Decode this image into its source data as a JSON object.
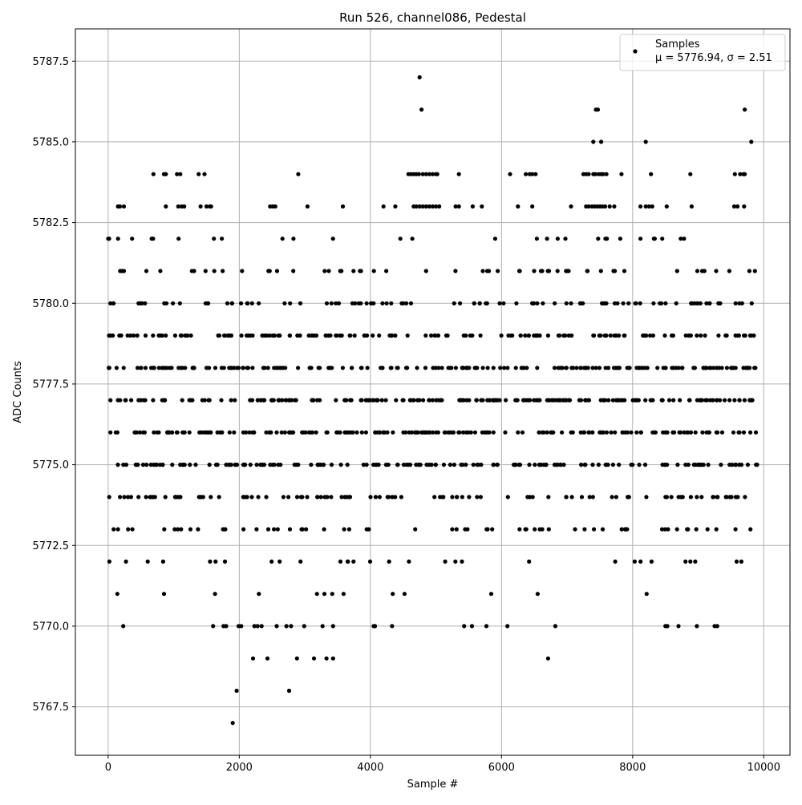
{
  "chart_data": {
    "type": "scatter",
    "title": "Run 526, channel086, Pedestal",
    "xlabel": "Sample #",
    "ylabel": "ADC Counts",
    "xlim": [
      -500,
      10400
    ],
    "ylim": [
      5766.0,
      5788.5
    ],
    "xticks": [
      0,
      2000,
      4000,
      6000,
      8000,
      10000
    ],
    "xtick_labels": [
      "0",
      "2000",
      "4000",
      "6000",
      "8000",
      "10000"
    ],
    "yticks": [
      5767.5,
      5770.0,
      5772.5,
      5775.0,
      5777.5,
      5780.0,
      5782.5,
      5785.0,
      5787.5
    ],
    "ytick_labels": [
      "5767.5",
      "5770.0",
      "5772.5",
      "5775.0",
      "5777.5",
      "5780.0",
      "5782.5",
      "5785.0",
      "5787.5"
    ],
    "grid": true,
    "legend_placement": "top-right",
    "marker_color": "#000000",
    "series": [
      {
        "name": "Samples",
        "legend_label_stats": "μ = 5776.94, σ = 2.51",
        "x_range": [
          0,
          9900
        ],
        "mean": 5776.94,
        "std": 2.51,
        "density_per_level": [
          {
            "y": 5787,
            "points": [
              4750
            ]
          },
          {
            "y": 5786,
            "points": [
              4780,
              7440,
              7470,
              9710
            ]
          },
          {
            "y": 5785,
            "points": [
              7400,
              7520,
              8200,
              9810
            ]
          },
          {
            "y": 5784,
            "points": [
              690,
              850,
              880,
              1050,
              1100,
              1380,
              1470,
              2900,
              4580,
              4620,
              4660,
              4700,
              4740,
              4800,
              4850,
              4900,
              4950,
              5000,
              5020,
              5350,
              6130,
              6370,
              6430,
              6470,
              6520,
              7250,
              7290,
              7330,
              7400,
              7430,
              7480,
              7520,
              7550,
              7600,
              7830,
              8280,
              8880,
              9560,
              9640,
              9690,
              9710
            ]
          },
          {
            "y": 5783,
            "points": [
              150,
              180,
              240,
              880,
              1070,
              1120,
              1160,
              1410,
              1500,
              1550,
              1570,
              2470,
              2510,
              2550,
              3040,
              3580,
              4200,
              4380,
              4660,
              4700,
              4750,
              4800,
              4850,
              4900,
              4950,
              5000,
              5050,
              5300,
              5350,
              5560,
              5700,
              6250,
              6470,
              7060,
              7290,
              7330,
              7380,
              7420,
              7460,
              7500,
              7540,
              7580,
              7650,
              7720,
              8120,
              8200,
              8250,
              8300,
              8520,
              8900,
              9550,
              9600,
              9700
            ]
          }
        ]
      }
    ]
  }
}
